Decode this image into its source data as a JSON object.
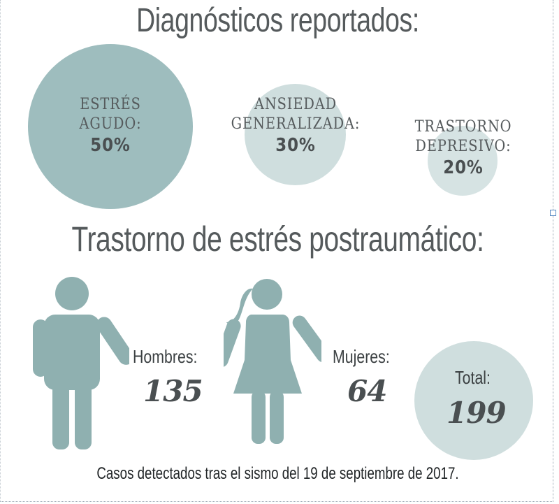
{
  "header": {
    "title": "Diagnósticos reportados:"
  },
  "diagnostics": [
    {
      "label_line1": "ESTRÉS",
      "label_line2": "AGUDO:",
      "percent": "50%"
    },
    {
      "label_line1": "ANSIEDAD",
      "label_line2": "GENERALIZADA:",
      "percent": "30%"
    },
    {
      "label_line1": "TRASTORNO",
      "label_line2": "DEPRESIVO:",
      "percent": "20%"
    }
  ],
  "ptsd": {
    "title": "Trastorno de estrés postraumático:",
    "men_label": "Hombres:",
    "men_value": "135",
    "women_label": "Mujeres:",
    "women_value": "64",
    "total_label": "Total:",
    "total_value": "199"
  },
  "footer": {
    "note": "Casos detectados tras el sismo del 19 de septiembre de 2017."
  },
  "colors": {
    "accent": "#9ebdbe",
    "light": "#cfdede",
    "text": "#555a5c"
  },
  "chart_data": [
    {
      "type": "bubble",
      "title": "Diagnósticos reportados:",
      "categories": [
        "ESTRÉS AGUDO",
        "ANSIEDAD GENERALIZADA",
        "TRASTORNO DEPRESIVO"
      ],
      "values": [
        50,
        30,
        20
      ],
      "unit": "%"
    },
    {
      "type": "pictogram",
      "title": "Trastorno de estrés postraumático:",
      "categories": [
        "Hombres",
        "Mujeres",
        "Total"
      ],
      "values": [
        135,
        64,
        199
      ]
    }
  ]
}
